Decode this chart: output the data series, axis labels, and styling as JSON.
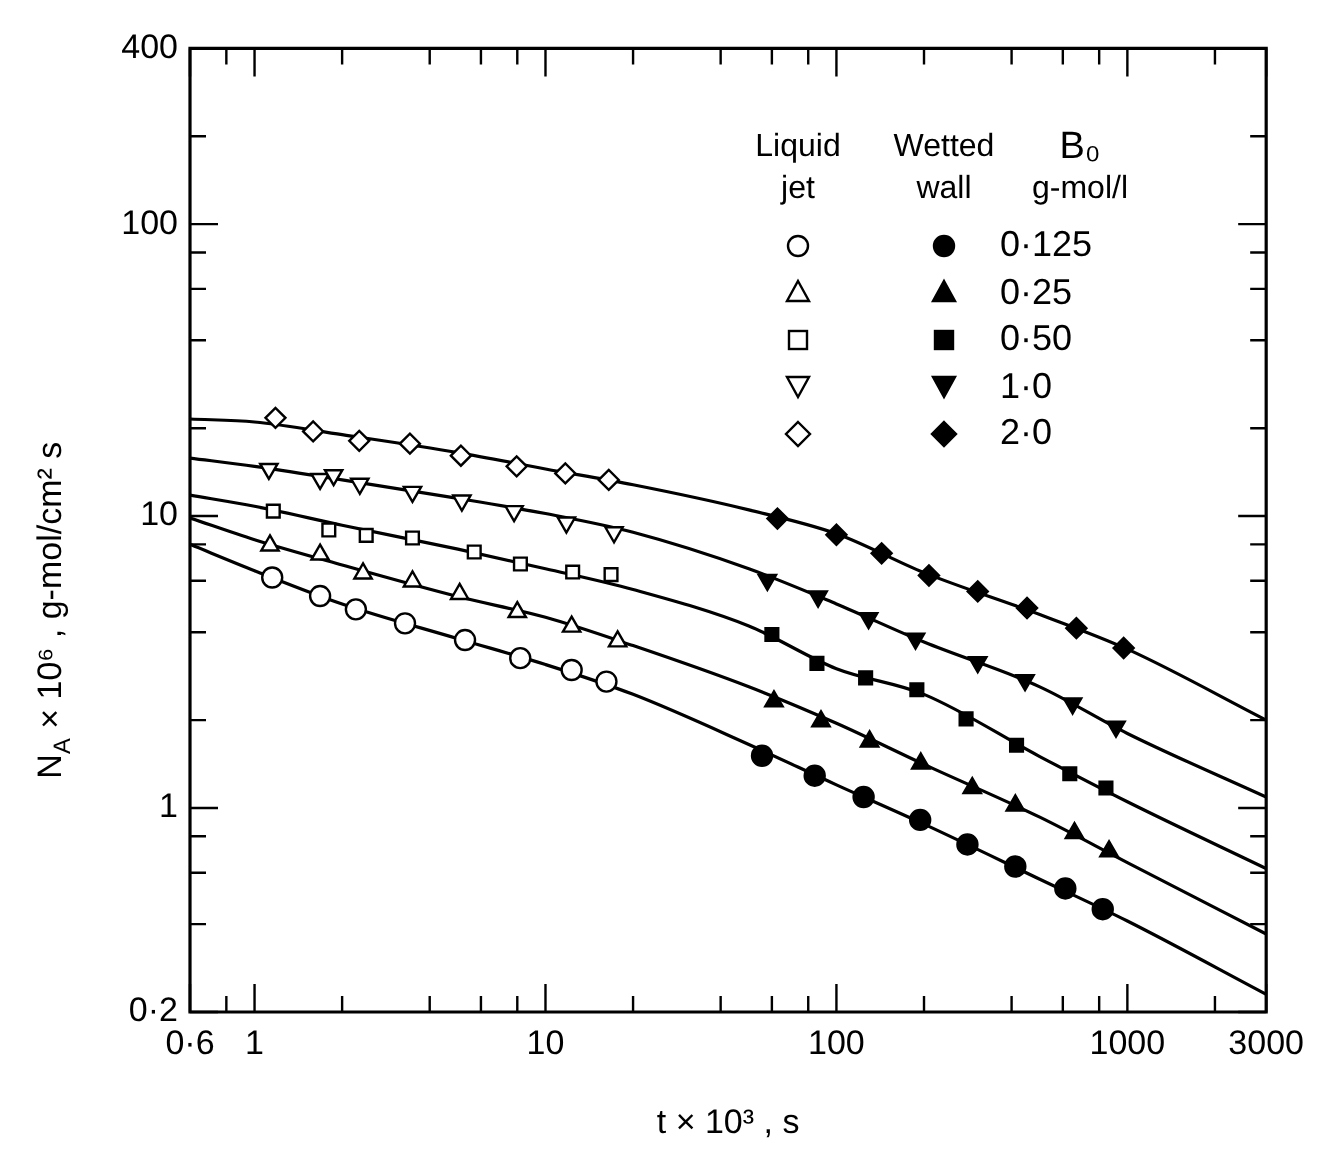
{
  "chart_data": {
    "type": "scatter",
    "xlabel": "t × 10³ , s",
    "ylabel": "N$_{A}$ × 10⁶ , g-mol/cm² s",
    "log": "xy",
    "grid": false,
    "legend": "top right",
    "legend_title": "B₀ g-mol/l",
    "annotations": [
      "Liquid jet",
      "Wetted wall"
    ],
    "xlim": [
      0.6,
      3000
    ],
    "ylim": [
      0.2,
      400
    ],
    "xticks": [
      {
        "value": 0.6,
        "label": "0·6"
      },
      {
        "value": 0.8,
        "label": null
      },
      1,
      {
        "value": 2,
        "label": null
      },
      {
        "value": 4,
        "label": null
      },
      {
        "value": 6,
        "label": null
      },
      {
        "value": 8,
        "label": null
      },
      10,
      {
        "value": 20,
        "label": null
      },
      {
        "value": 40,
        "label": null
      },
      {
        "value": 60,
        "label": null
      },
      {
        "value": 80,
        "label": null
      },
      100,
      {
        "value": 200,
        "label": null
      },
      {
        "value": 400,
        "label": null
      },
      {
        "value": 600,
        "label": null
      },
      {
        "value": 800,
        "label": null
      },
      1000,
      {
        "value": 2000,
        "label": null
      },
      3000
    ],
    "yticks": [
      {
        "value": 0.2,
        "label": "0·2"
      },
      {
        "value": 0.4,
        "label": null
      },
      {
        "value": 0.6,
        "label": null
      },
      {
        "value": 0.8,
        "label": null
      },
      1,
      {
        "value": 2,
        "label": null
      },
      {
        "value": 4,
        "label": null
      },
      {
        "value": 6,
        "label": null
      },
      {
        "value": 8,
        "label": null
      },
      10,
      {
        "value": 20,
        "label": null
      },
      {
        "value": 40,
        "label": null
      },
      {
        "value": 60,
        "label": null
      },
      {
        "value": 80,
        "label": null
      },
      100,
      {
        "value": 200,
        "label": null
      },
      400
    ],
    "series": [
      {
        "type": "line",
        "color": "#000000",
        "marker": "none",
        "line_style": "solid",
        "x": [
          0.6,
          1,
          2,
          5,
          10,
          20,
          50,
          100,
          200,
          500,
          1000,
          3000
        ],
        "values": [
          8.0,
          6.5,
          5.0,
          3.8,
          3.1,
          2.45,
          1.65,
          1.2,
          0.88,
          0.57,
          0.41,
          0.23
        ]
      },
      {
        "type": "line",
        "color": "#000000",
        "marker": "none",
        "line_style": "solid",
        "x": [
          0.6,
          1,
          2,
          5,
          10,
          20,
          50,
          100,
          200,
          500,
          1000,
          3000
        ],
        "values": [
          9.85,
          8.3,
          6.8,
          5.3,
          4.5,
          3.6,
          2.6,
          1.95,
          1.41,
          0.93,
          0.65,
          0.37
        ]
      },
      {
        "type": "line",
        "color": "#000000",
        "marker": "none",
        "line_style": "solid",
        "x": [
          0.6,
          1,
          2,
          5,
          10,
          20,
          50,
          100,
          200,
          500,
          1000,
          3000
        ],
        "values": [
          11.8,
          10.8,
          9.3,
          7.7,
          6.6,
          5.6,
          4.2,
          3.0,
          2.45,
          1.5,
          1.05,
          0.62
        ]
      },
      {
        "type": "line",
        "color": "#000000",
        "marker": "none",
        "line_style": "solid",
        "x": [
          0.6,
          1,
          2,
          5,
          10,
          20,
          50,
          100,
          200,
          500,
          1000,
          3000
        ],
        "values": [
          15.8,
          14.8,
          13.3,
          11.5,
          10.2,
          8.8,
          6.6,
          5.0,
          3.7,
          2.6,
          1.8,
          1.09
        ]
      },
      {
        "type": "line",
        "color": "#000000",
        "marker": "none",
        "line_style": "solid",
        "x": [
          0.6,
          1,
          2,
          5,
          10,
          20,
          50,
          100,
          200,
          500,
          1000,
          3000
        ],
        "values": [
          21.5,
          21,
          19,
          16.5,
          14.5,
          12.8,
          10.5,
          8.7,
          6.4,
          4.6,
          3.5,
          2.0
        ]
      },
      {
        "type": "scatter",
        "color": "#ffffff",
        "marker": "circle",
        "x": [
          1.15,
          1.68,
          2.23,
          3.29,
          5.29,
          8.19,
          12.3,
          16.2
        ],
        "values": [
          6.16,
          5.32,
          4.79,
          4.29,
          3.76,
          3.26,
          2.97,
          2.71
        ]
      },
      {
        "type": "scatter",
        "name": "0·125",
        "color": "#000000",
        "marker": "circle",
        "x": [
          55.5,
          84.2,
          124,
          194,
          282,
          412,
          612,
          823
        ],
        "values": [
          1.51,
          1.29,
          1.09,
          0.91,
          0.75,
          0.63,
          0.53,
          0.45
        ]
      },
      {
        "type": "scatter",
        "color": "#ffffff",
        "marker": "triangle",
        "x": [
          1.13,
          1.68,
          2.36,
          3.49,
          5.07,
          8.0,
          12.3,
          17.7
        ],
        "values": [
          7.93,
          7.38,
          6.36,
          5.97,
          5.41,
          4.69,
          4.18,
          3.72
        ]
      },
      {
        "type": "scatter",
        "name": "0·25",
        "color": "#000000",
        "marker": "triangle",
        "x": [
          61,
          88.5,
          130,
          195,
          293,
          412,
          658,
          865
        ],
        "values": [
          2.32,
          1.98,
          1.69,
          1.42,
          1.17,
          1.02,
          0.82,
          0.71
        ]
      },
      {
        "type": "scatter",
        "color": "#ffffff",
        "marker": "square",
        "x": [
          1.16,
          1.8,
          2.42,
          3.49,
          5.69,
          8.2,
          12.4,
          16.8
        ],
        "values": [
          10.4,
          8.96,
          8.59,
          8.41,
          7.53,
          6.85,
          6.43,
          6.3
        ]
      },
      {
        "type": "scatter",
        "name": "0·50",
        "color": "#000000",
        "marker": "square",
        "x": [
          60,
          85.7,
          126,
          189,
          279,
          416,
          634,
          844
        ],
        "values": [
          3.93,
          3.13,
          2.79,
          2.54,
          2.02,
          1.64,
          1.31,
          1.17
        ]
      },
      {
        "type": "scatter",
        "color": "#ffffff",
        "marker": "triangle-down",
        "x": [
          1.12,
          1.68,
          1.87,
          2.3,
          3.49,
          5.16,
          7.8,
          11.8,
          17.2
        ],
        "values": [
          14.5,
          13.4,
          13.8,
          12.9,
          12.1,
          11.3,
          10.4,
          9.5,
          8.8
        ]
      },
      {
        "type": "scatter",
        "name": "1·0",
        "color": "#000000",
        "marker": "triangle-down",
        "x": [
          57.9,
          86.5,
          129,
          187,
          306,
          445,
          648,
          914
        ],
        "values": [
          6.04,
          5.3,
          4.47,
          3.8,
          3.16,
          2.74,
          2.28,
          1.9
        ]
      },
      {
        "type": "scatter",
        "color": "#ffffff",
        "marker": "diamond",
        "x": [
          1.18,
          1.59,
          2.29,
          3.42,
          5.12,
          7.96,
          11.7,
          16.5
        ],
        "values": [
          21.7,
          19.5,
          18.1,
          17.7,
          16.1,
          14.8,
          14.0,
          13.3
        ]
      },
      {
        "type": "scatter",
        "name": "2·0",
        "color": "#000000",
        "marker": "diamond",
        "x": [
          62.7,
          100,
          143,
          208,
          306,
          452,
          668,
          971
        ],
        "values": [
          9.8,
          8.63,
          7.45,
          6.26,
          5.52,
          4.84,
          4.13,
          3.53
        ]
      }
    ]
  }
}
